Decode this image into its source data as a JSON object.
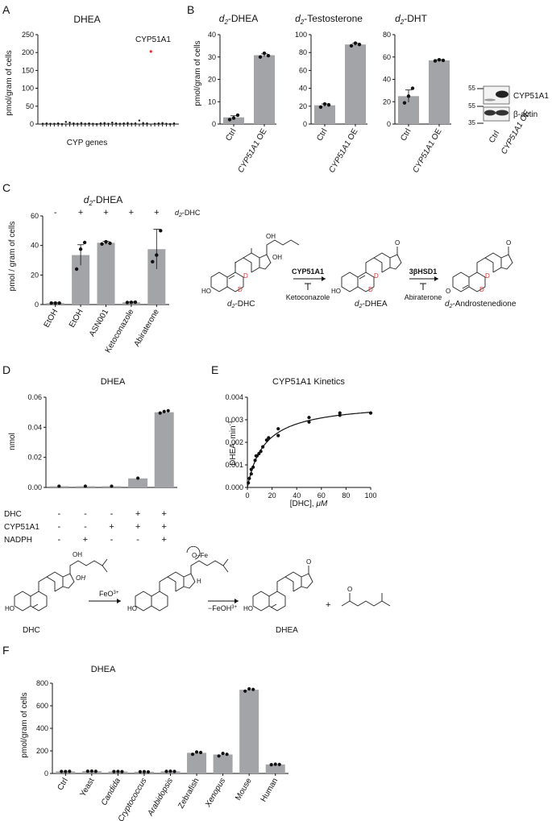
{
  "figure": {
    "panel_labels": [
      "A",
      "B",
      "C",
      "D",
      "E",
      "F"
    ],
    "colors": {
      "bar": "#a2a4a7",
      "point": "#111111",
      "highlight": "#e2302a"
    }
  },
  "panel_a": {
    "title": "DHEA",
    "ylabel": "pmol/gram of cells",
    "xlabel": "CYP genes",
    "highlight_label": "CYP51A1",
    "yticks": [
      "0",
      "50",
      "100",
      "150",
      "200",
      "250"
    ]
  },
  "panel_b": {
    "ylabel": "pmol/gram of cells",
    "titles": {
      "prefix": "d",
      "subscript": "2",
      "dhea": "-DHEA",
      "testosterone": "-Testosterone",
      "dht": "-DHT"
    },
    "x_ctrl": "Ctrl",
    "x_oe_gene": "CYP51A1",
    "x_oe_suffix": " OE",
    "yticks_dhea": [
      "0",
      "10",
      "20",
      "30",
      "40"
    ],
    "yticks_testo": [
      "0",
      "20",
      "40",
      "60",
      "80",
      "100"
    ],
    "yticks_dht": [
      "0",
      "20",
      "40",
      "60",
      "80"
    ],
    "blot": {
      "markers": [
        "55",
        "55",
        "35"
      ],
      "labels": [
        "CYP51A1",
        "β-actin"
      ],
      "lanes": [
        "Ctrl",
        "CYP51A1 OE"
      ]
    }
  },
  "panel_c": {
    "title_prefix": "d",
    "title_sub": "2",
    "title_rest": "-DHEA",
    "ylabel": "pmol / gram of cells",
    "yticks": [
      "0",
      "20",
      "40",
      "60"
    ],
    "signs": [
      "-",
      "+",
      "+",
      "+",
      "+"
    ],
    "dhc_label_prefix": "d",
    "dhc_label_sub": "2",
    "dhc_label_rest": "-DHC",
    "categories": [
      "EtOH",
      "EtOH",
      "ASN001",
      "Ketoconazole",
      "Abiraterone"
    ],
    "scheme": {
      "compound1_prefix": "d",
      "compound1_sub": "2",
      "compound1_rest": "-DHC",
      "compound2_prefix": "d",
      "compound2_sub": "2",
      "compound2_rest": "-DHEA",
      "compound3_prefix": "d",
      "compound3_sub": "2",
      "compound3_rest": "-Androstenedione",
      "enzyme1": "CYP51A1",
      "inhibitor1": "Ketoconazole",
      "enzyme2": "3βHSD1",
      "inhibitor2": "Abiraterone",
      "atom_oh": "OH",
      "atom_ho": "HO",
      "atom_o": "O",
      "atom_d": "D"
    }
  },
  "panel_d": {
    "title": "DHEA",
    "ylabel": "nmol",
    "yticks": [
      "0.00",
      "0.02",
      "0.04",
      "0.06"
    ],
    "rows": [
      {
        "label": "DHC",
        "signs": [
          "-",
          "-",
          "-",
          "+",
          "+"
        ]
      },
      {
        "label": "CYP51A1",
        "signs": [
          "-",
          "-",
          "+",
          "+",
          "+"
        ]
      },
      {
        "label": "NADPH",
        "signs": [
          "-",
          "+",
          "-",
          "-",
          "+"
        ]
      }
    ]
  },
  "panel_e": {
    "title": "CYP51A1 Kinetics",
    "ylabel": "DHEA, min",
    "ylabel_sup": "-1",
    "xlabel": "[DHC], ",
    "xlabel_unit": "μM",
    "xticks": [
      "0",
      "20",
      "40",
      "60",
      "80",
      "100"
    ],
    "yticks": [
      "0.000",
      "0.001",
      "0.002",
      "0.003",
      "0.004"
    ]
  },
  "mechanism": {
    "substrate": "DHC",
    "product": "DHEA",
    "step1": "FeO",
    "step1_sup": "3+",
    "step2": "−FeOH",
    "step2_sup": "3+",
    "oh": "OH",
    "ho": "HO",
    "o_fe": "O–Fe",
    "o": "O",
    "h": "H",
    "plus": "+"
  },
  "panel_f": {
    "title": "DHEA",
    "ylabel": "pmol/gram of cells",
    "yticks": [
      "0",
      "200",
      "400",
      "600",
      "800"
    ],
    "categories": [
      "Ctrl",
      "Yeast",
      "Candida",
      "Cryptococcus",
      "Arabidopsis",
      "Zebrafish",
      "Xenopus",
      "Mouse",
      "Human"
    ],
    "italic": [
      false,
      false,
      true,
      true,
      true,
      false,
      true,
      false,
      false
    ]
  },
  "chart_data": [
    {
      "type": "scatter",
      "panel": "A",
      "title": "DHEA",
      "xlabel": "CYP genes",
      "ylabel": "pmol/gram of cells",
      "ylim": [
        0,
        250
      ],
      "values": [
        1,
        2,
        1,
        1,
        2,
        0,
        6,
        4,
        2,
        1,
        3,
        1,
        2,
        1,
        0,
        2,
        3,
        1,
        4,
        2,
        1,
        2,
        3,
        1,
        2,
        10,
        3,
        2,
        203,
        1,
        2,
        3,
        1,
        0,
        2
      ],
      "highlight": {
        "label": "CYP51A1",
        "value": 203
      }
    },
    {
      "type": "bar",
      "panel": "B",
      "title": "d2-DHEA",
      "ylabel": "pmol/gram of cells",
      "categories": [
        "Ctrl",
        "CYP51A1 OE"
      ],
      "values": [
        3.0,
        30.8
      ],
      "points": [
        [
          2.0,
          2.7,
          4.0
        ],
        [
          30.0,
          31.7,
          30.6
        ]
      ],
      "error": [
        0.7,
        0.6
      ],
      "ylim": [
        0,
        40
      ]
    },
    {
      "type": "bar",
      "panel": "B",
      "title": "d2-Testosterone",
      "categories": [
        "Ctrl",
        "CYP51A1 OE"
      ],
      "values": [
        21,
        89
      ],
      "points": [
        [
          19.0,
          22.5,
          21.5
        ],
        [
          87.5,
          90.5,
          89.0
        ]
      ],
      "error": [
        1.5,
        1.2
      ],
      "ylim": [
        0,
        100
      ]
    },
    {
      "type": "bar",
      "panel": "B",
      "title": "d2-DHT",
      "categories": [
        "Ctrl",
        "CYP51A1 OE"
      ],
      "values": [
        25,
        57
      ],
      "points": [
        [
          19.0,
          25.0,
          32.0
        ],
        [
          56.5,
          57.5,
          57.0
        ]
      ],
      "error": [
        5.5,
        0.6
      ],
      "ylim": [
        0,
        80
      ]
    },
    {
      "type": "bar",
      "panel": "C",
      "title": "d2-DHEA",
      "ylabel": "pmol / gram of cells",
      "categories": [
        "EtOH",
        "EtOH",
        "ASN001",
        "Ketoconazole",
        "Abiraterone"
      ],
      "treatment_d2DHC": [
        "-",
        "+",
        "+",
        "+",
        "+"
      ],
      "values": [
        1.0,
        33.5,
        41.8,
        1.5,
        37.5
      ],
      "points": [
        [
          1.0,
          1.0,
          1.0
        ],
        [
          24.0,
          37.5,
          42.0
        ],
        [
          41.0,
          42.5,
          41.5
        ],
        [
          1.4,
          1.5,
          1.6
        ],
        [
          29.0,
          33.5,
          50.0
        ]
      ],
      "error": [
        0.2,
        7.0,
        1.0,
        0.3,
        13.5
      ],
      "ylim": [
        0,
        60
      ]
    },
    {
      "type": "bar",
      "panel": "D",
      "title": "DHEA",
      "ylabel": "nmol",
      "categories": [
        "1",
        "2",
        "3",
        "4",
        "5"
      ],
      "values": [
        0.0008,
        0.0008,
        0.0008,
        0.006,
        0.05
      ],
      "points": [
        [
          0.0008
        ],
        [
          0.0008
        ],
        [
          0.0008
        ],
        [
          0.0062
        ],
        [
          0.0495,
          0.0505,
          0.051
        ]
      ],
      "ylim": [
        0,
        0.06
      ]
    },
    {
      "type": "line",
      "panel": "E",
      "title": "CYP51A1 Kinetics",
      "xlabel": "[DHC], μM",
      "ylabel": "DHEA, min-1",
      "xlim": [
        0,
        100
      ],
      "ylim": [
        0,
        0.004
      ],
      "points": [
        [
          0.78,
          0.0002
        ],
        [
          1.56,
          0.0004
        ],
        [
          3.13,
          0.0008
        ],
        [
          3.13,
          0.0006
        ],
        [
          4.69,
          0.0009
        ],
        [
          6.25,
          0.0012
        ],
        [
          7.03,
          0.0014
        ],
        [
          7.81,
          0.0014
        ],
        [
          9.38,
          0.0015
        ],
        [
          10.9,
          0.0016
        ],
        [
          12.5,
          0.0018
        ],
        [
          15.6,
          0.0021
        ],
        [
          17.2,
          0.0022
        ],
        [
          25,
          0.0023
        ],
        [
          25,
          0.0026
        ],
        [
          50,
          0.0029
        ],
        [
          50,
          0.0031
        ],
        [
          75,
          0.0032
        ],
        [
          75,
          0.0033
        ],
        [
          100,
          0.0033
        ]
      ],
      "fit": {
        "model": "Michaelis-Menten",
        "Vmax": 0.0038,
        "Km": 14
      }
    },
    {
      "type": "bar",
      "panel": "F",
      "title": "DHEA",
      "ylabel": "pmol/gram of cells",
      "categories": [
        "Ctrl",
        "Yeast",
        "Candida",
        "Cryptococcus",
        "Arabidopsis",
        "Zebrafish",
        "Xenopus",
        "Mouse",
        "Human"
      ],
      "values": [
        18,
        20,
        17,
        15,
        19,
        183,
        168,
        742,
        80
      ],
      "points": [
        [
          18,
          17,
          19
        ],
        [
          20,
          21,
          19
        ],
        [
          17,
          18,
          16
        ],
        [
          15,
          16,
          14
        ],
        [
          19,
          20,
          18
        ],
        [
          170,
          190,
          186
        ],
        [
          155,
          178,
          170
        ],
        [
          730,
          750,
          745
        ],
        [
          78,
          82,
          80
        ]
      ],
      "ylim": [
        0,
        800
      ]
    }
  ]
}
